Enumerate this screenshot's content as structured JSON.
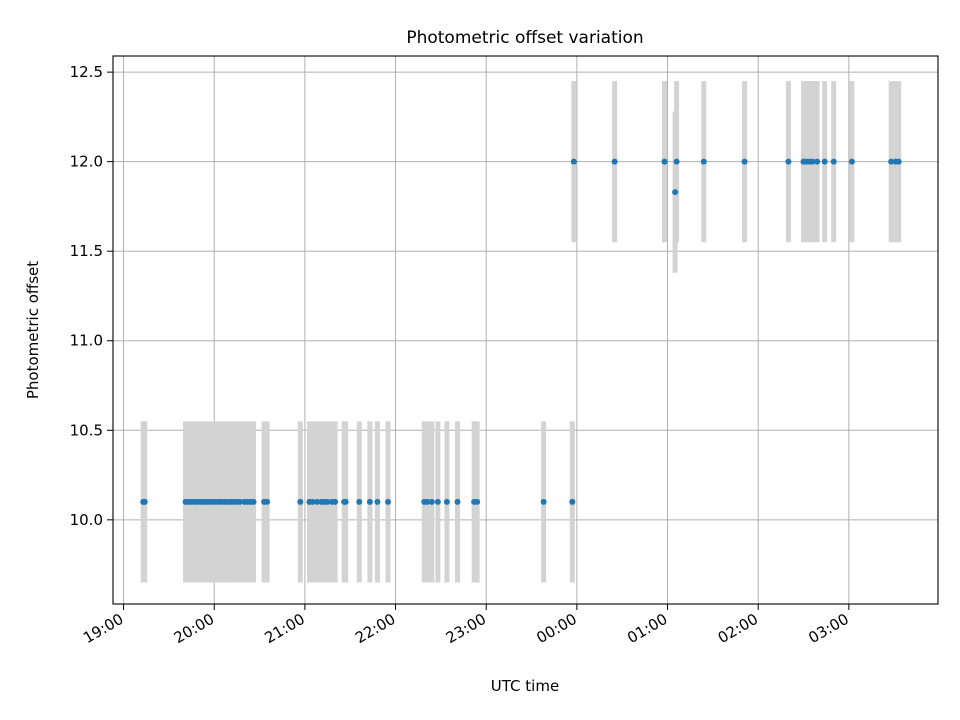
{
  "chart_data": {
    "type": "scatter",
    "title": "Photometric offset variation",
    "xlabel": "UTC time",
    "ylabel": "Photometric offset",
    "xlim": [
      "18:53",
      "03:59"
    ],
    "ylim": [
      9.53,
      12.59
    ],
    "x_ticks": [
      "19:00",
      "20:00",
      "21:00",
      "22:00",
      "23:00",
      "00:00",
      "01:00",
      "02:00",
      "03:00"
    ],
    "y_ticks": [
      "10.0",
      "10.5",
      "11.0",
      "11.5",
      "12.0",
      "12.5"
    ],
    "grid": true,
    "series": [
      {
        "color": "#1f77b4",
        "errorbar_color": "#d3d3d3",
        "error": 0.45,
        "points": [
          {
            "x": "19:13",
            "y": 10.1
          },
          {
            "x": "19:14",
            "y": 10.1
          },
          {
            "x": "19:41",
            "y": 10.1
          },
          {
            "x": "19:43",
            "y": 10.1
          },
          {
            "x": "19:45",
            "y": 10.1
          },
          {
            "x": "19:47",
            "y": 10.1
          },
          {
            "x": "19:49",
            "y": 10.1
          },
          {
            "x": "19:51",
            "y": 10.1
          },
          {
            "x": "19:53",
            "y": 10.1
          },
          {
            "x": "19:55",
            "y": 10.1
          },
          {
            "x": "19:57",
            "y": 10.1
          },
          {
            "x": "19:59",
            "y": 10.1
          },
          {
            "x": "20:01",
            "y": 10.1
          },
          {
            "x": "20:03",
            "y": 10.1
          },
          {
            "x": "20:05",
            "y": 10.1
          },
          {
            "x": "20:07",
            "y": 10.1
          },
          {
            "x": "20:09",
            "y": 10.1
          },
          {
            "x": "20:11",
            "y": 10.1
          },
          {
            "x": "20:13",
            "y": 10.1
          },
          {
            "x": "20:15",
            "y": 10.1
          },
          {
            "x": "20:17",
            "y": 10.1
          },
          {
            "x": "20:20",
            "y": 10.1
          },
          {
            "x": "20:22",
            "y": 10.1
          },
          {
            "x": "20:24",
            "y": 10.1
          },
          {
            "x": "20:26",
            "y": 10.1
          },
          {
            "x": "20:33",
            "y": 10.1
          },
          {
            "x": "20:35",
            "y": 10.1
          },
          {
            "x": "20:57",
            "y": 10.1
          },
          {
            "x": "21:03",
            "y": 10.1
          },
          {
            "x": "21:05",
            "y": 10.1
          },
          {
            "x": "21:08",
            "y": 10.1
          },
          {
            "x": "21:11",
            "y": 10.1
          },
          {
            "x": "21:13",
            "y": 10.1
          },
          {
            "x": "21:15",
            "y": 10.1
          },
          {
            "x": "21:18",
            "y": 10.1
          },
          {
            "x": "21:20",
            "y": 10.1
          },
          {
            "x": "21:26",
            "y": 10.1
          },
          {
            "x": "21:27",
            "y": 10.1
          },
          {
            "x": "21:36",
            "y": 10.1
          },
          {
            "x": "21:43",
            "y": 10.1
          },
          {
            "x": "21:48",
            "y": 10.1
          },
          {
            "x": "21:55",
            "y": 10.1
          },
          {
            "x": "22:19",
            "y": 10.1
          },
          {
            "x": "22:21",
            "y": 10.1
          },
          {
            "x": "22:24",
            "y": 10.1
          },
          {
            "x": "22:28",
            "y": 10.1
          },
          {
            "x": "22:34",
            "y": 10.1
          },
          {
            "x": "22:41",
            "y": 10.1
          },
          {
            "x": "22:52",
            "y": 10.1
          },
          {
            "x": "22:54",
            "y": 10.1
          },
          {
            "x": "23:38",
            "y": 10.1
          },
          {
            "x": "23:57",
            "y": 10.1
          },
          {
            "x": "23:58",
            "y": 12.0
          },
          {
            "x": "00:25",
            "y": 12.0
          },
          {
            "x": "00:58",
            "y": 12.0
          },
          {
            "x": "01:05",
            "y": 11.83
          },
          {
            "x": "01:06",
            "y": 12.0
          },
          {
            "x": "01:24",
            "y": 12.0
          },
          {
            "x": "01:51",
            "y": 12.0
          },
          {
            "x": "02:20",
            "y": 12.0
          },
          {
            "x": "02:30",
            "y": 12.0
          },
          {
            "x": "02:32",
            "y": 12.0
          },
          {
            "x": "02:34",
            "y": 12.0
          },
          {
            "x": "02:36",
            "y": 12.0
          },
          {
            "x": "02:39",
            "y": 12.0
          },
          {
            "x": "02:44",
            "y": 12.0
          },
          {
            "x": "02:50",
            "y": 12.0
          },
          {
            "x": "03:02",
            "y": 12.0
          },
          {
            "x": "03:28",
            "y": 12.0
          },
          {
            "x": "03:31",
            "y": 12.0
          },
          {
            "x": "03:33",
            "y": 12.0
          }
        ]
      }
    ]
  }
}
